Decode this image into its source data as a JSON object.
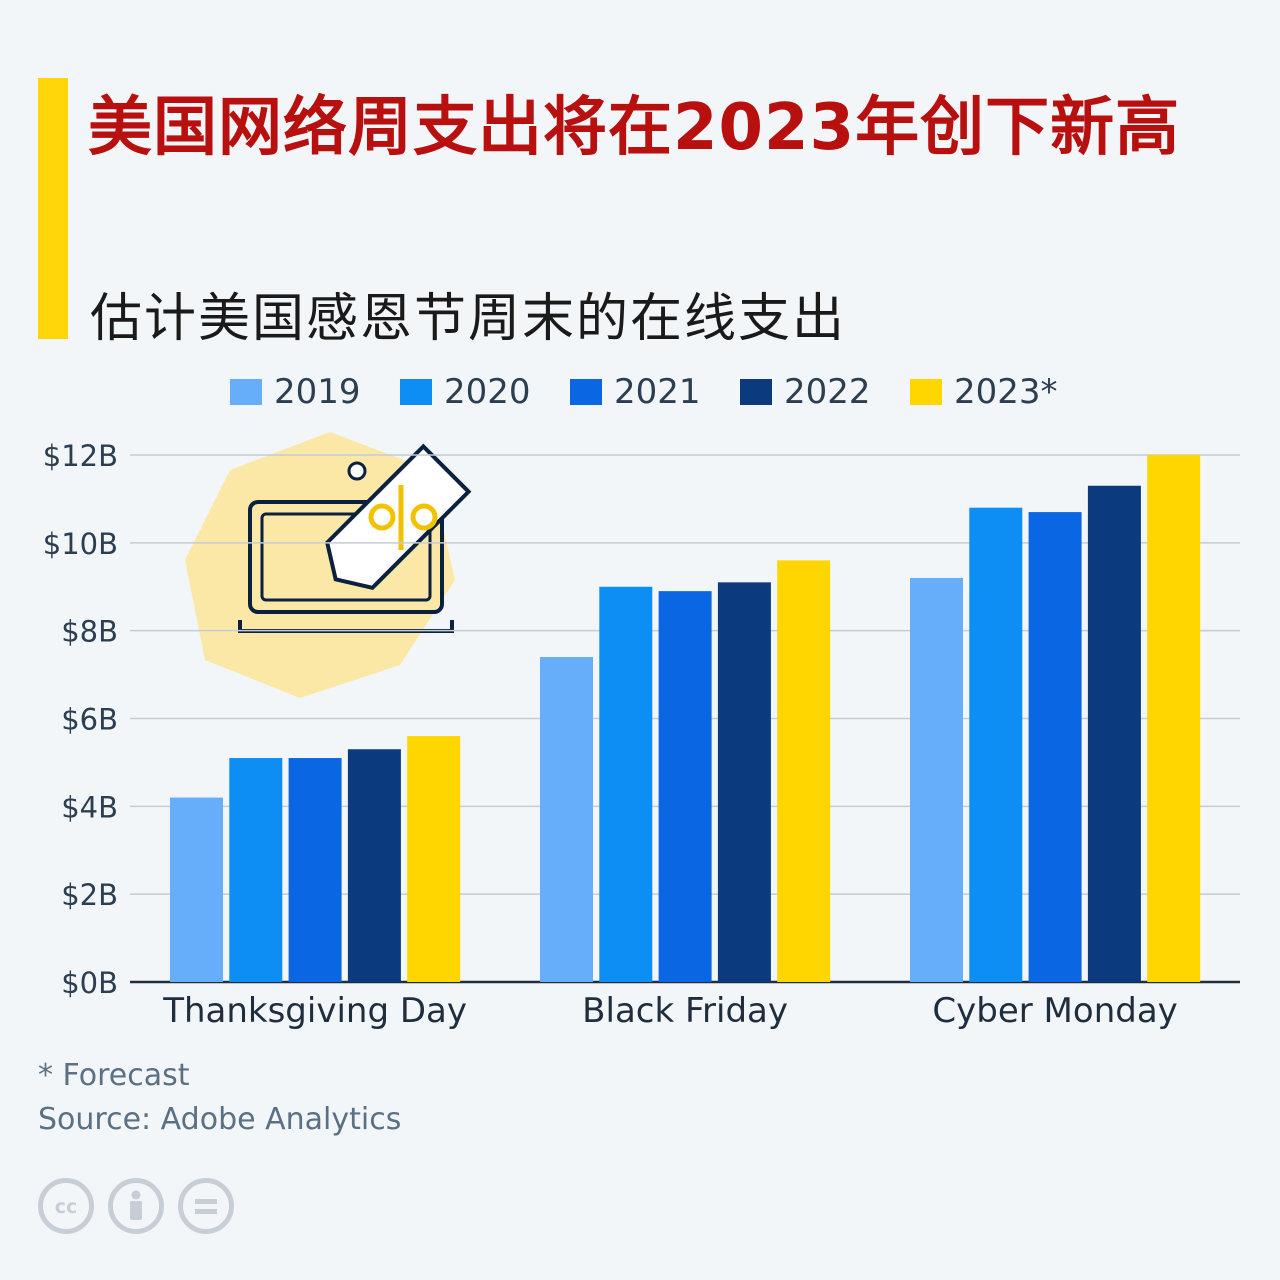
{
  "title": "美国网络周支出将在2023年创下新高",
  "subtitle": "估计美国感恩节周末的在线支出",
  "footnote": "* Forecast",
  "source": "Source: Adobe Analytics",
  "license_icons": [
    "cc-icon",
    "attribution-icon",
    "no-derivatives-icon"
  ],
  "illustration_icon": "laptop-price-tag-icon",
  "colors": {
    "accent": "#ffd60a",
    "title": "#b80f0f",
    "s2019": "#66aef9",
    "s2020": "#0d8ef5",
    "s2021": "#0a66e2",
    "s2022": "#0b3a7e",
    "s2023": "#ffd600"
  },
  "chart_data": {
    "type": "bar",
    "categories": [
      "Thanksgiving Day",
      "Black Friday",
      "Cyber Monday"
    ],
    "series": [
      {
        "name": "2019",
        "values": [
          4.2,
          7.4,
          9.2
        ]
      },
      {
        "name": "2020",
        "values": [
          5.1,
          9.0,
          10.8
        ]
      },
      {
        "name": "2021",
        "values": [
          5.1,
          8.9,
          10.7
        ]
      },
      {
        "name": "2022",
        "values": [
          5.3,
          9.1,
          11.3
        ]
      },
      {
        "name": "2023*",
        "values": [
          5.6,
          9.6,
          12.0
        ]
      }
    ],
    "ylim": [
      0,
      12
    ],
    "yticks": [
      "$0B",
      "$2B",
      "$4B",
      "$6B",
      "$8B",
      "$10B",
      "$12B"
    ],
    "grid": true,
    "legend_position": "top"
  }
}
